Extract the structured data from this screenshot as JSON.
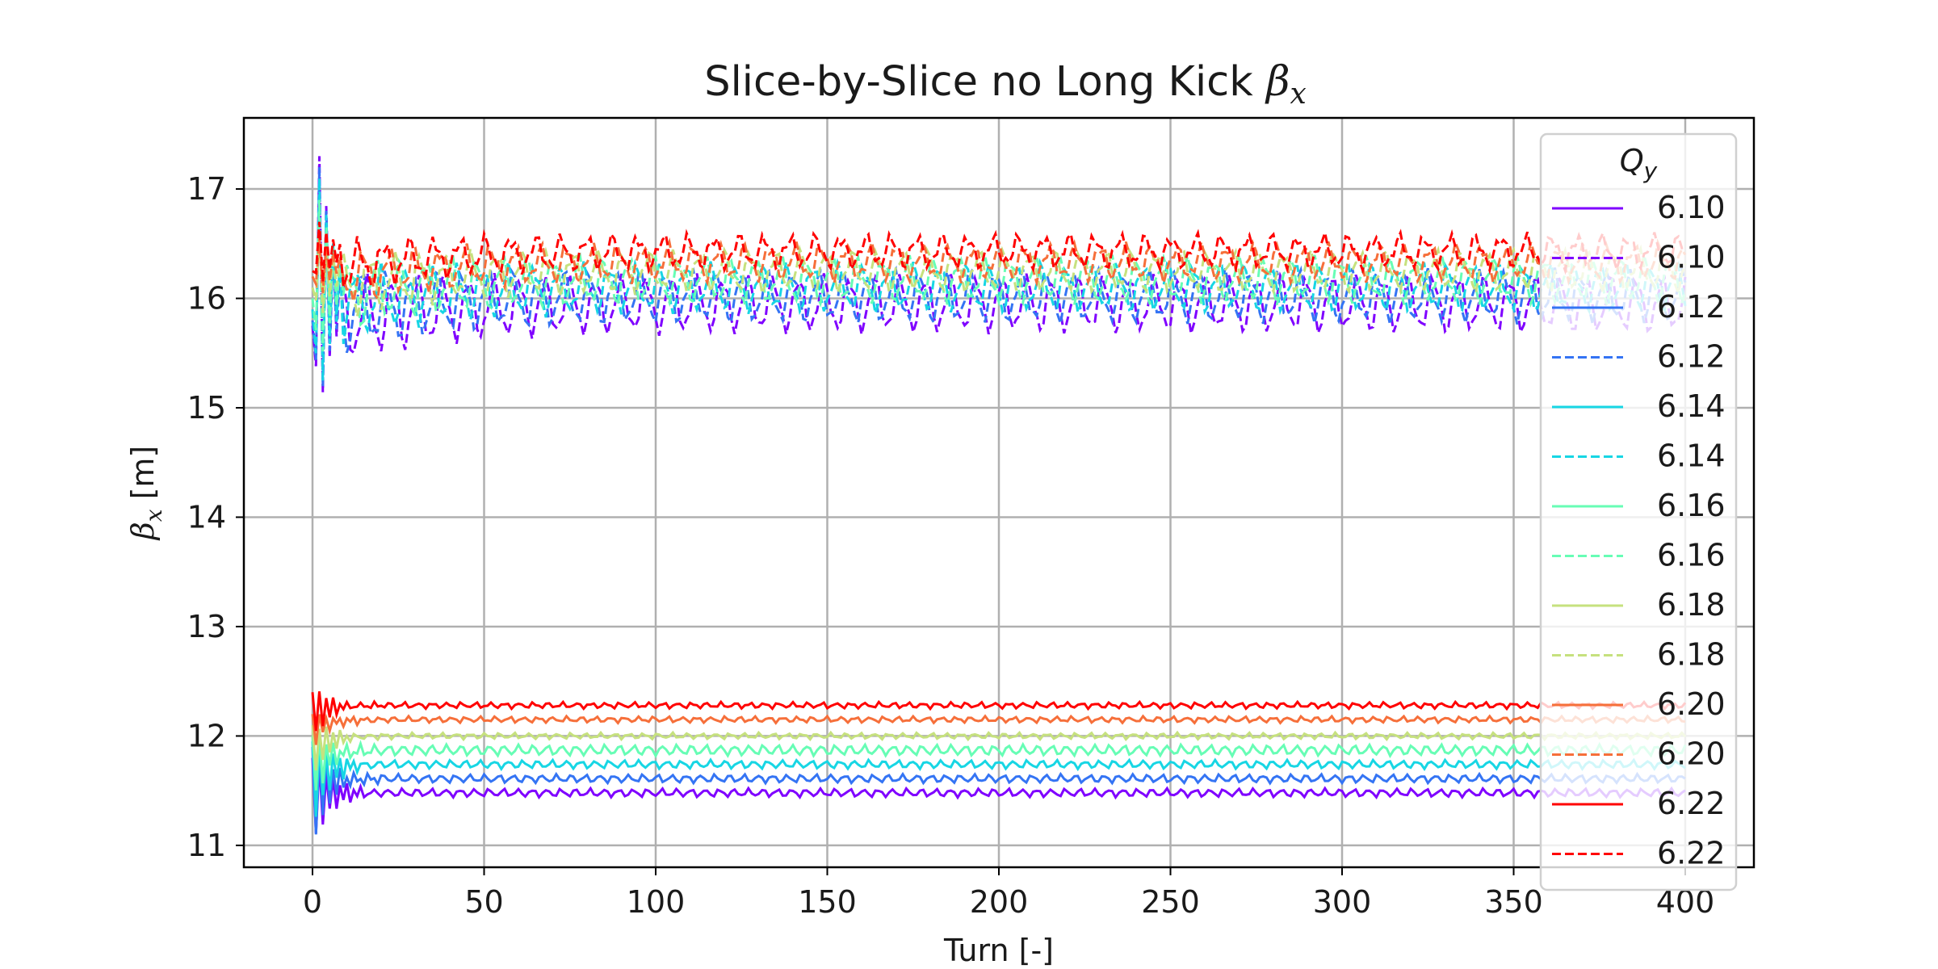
{
  "chart_data": {
    "type": "line",
    "title": "Slice-by-Slice no Long Kick ",
    "title_symbol": "β",
    "title_subscript": "x",
    "xlabel": "Turn [-]",
    "ylabel": " [m]",
    "ylabel_symbol": "β",
    "ylabel_subscript": "x",
    "xlim": [
      -20,
      420
    ],
    "ylim": [
      10.8,
      17.65
    ],
    "xticks": [
      0,
      50,
      100,
      150,
      200,
      250,
      300,
      350,
      400
    ],
    "yticks": [
      11,
      12,
      13,
      14,
      15,
      16,
      17
    ],
    "grid": true,
    "legend": {
      "title_symbol": "Q",
      "title_subscript": "y",
      "placement": "top-right (overlapping plot edge)"
    },
    "turns": 400,
    "series": [
      {
        "name": "6.10",
        "color": "#7f00ff",
        "dash": "solid",
        "start": 11.8,
        "mean": 11.48,
        "amp": 0.03,
        "osc_period": 4.2,
        "initial_min": 11.1
      },
      {
        "name": "6.10",
        "color": "#7f00ff",
        "dash": "dashed",
        "start": 15.75,
        "mean": 15.95,
        "amp": 0.22,
        "osc_period": 7.4,
        "initial_peak": 17.3,
        "initial_min": 15.0
      },
      {
        "name": "6.12",
        "color": "#3474f4",
        "dash": "solid",
        "start": 11.9,
        "mean": 11.61,
        "amp": 0.03,
        "osc_period": 4.2,
        "initial_min": 11.15
      },
      {
        "name": "6.12",
        "color": "#3474f4",
        "dash": "dashed",
        "start": 15.8,
        "mean": 16.02,
        "amp": 0.2,
        "osc_period": 7.4,
        "initial_peak": 17.2,
        "initial_min": 15.05
      },
      {
        "name": "6.14",
        "color": "#17d6e4",
        "dash": "solid",
        "start": 11.95,
        "mean": 11.74,
        "amp": 0.03,
        "osc_period": 4.2,
        "initial_min": 11.3
      },
      {
        "name": "6.14",
        "color": "#17d6e4",
        "dash": "dashed",
        "start": 15.9,
        "mean": 16.1,
        "amp": 0.18,
        "osc_period": 7.4,
        "initial_peak": 17.1,
        "initial_min": 15.1
      },
      {
        "name": "6.16",
        "color": "#67fdb5",
        "dash": "solid",
        "start": 12.0,
        "mean": 11.87,
        "amp": 0.04,
        "osc_period": 4.2,
        "initial_min": 11.5
      },
      {
        "name": "6.16",
        "color": "#67fdb5",
        "dash": "dashed",
        "start": 16.0,
        "mean": 16.17,
        "amp": 0.17,
        "osc_period": 7.4,
        "initial_peak": 16.9,
        "initial_min": 15.4
      },
      {
        "name": "6.18",
        "color": "#c6e17e",
        "dash": "solid",
        "start": 12.1,
        "mean": 12.0,
        "amp": 0.02,
        "osc_period": 4.2,
        "initial_min": 11.7
      },
      {
        "name": "6.18",
        "color": "#c6e17e",
        "dash": "dashed",
        "start": 16.1,
        "mean": 16.25,
        "amp": 0.15,
        "osc_period": 7.4,
        "initial_peak": 16.6,
        "initial_min": 15.8
      },
      {
        "name": "6.20",
        "color": "#f66f3a",
        "dash": "solid",
        "start": 12.2,
        "mean": 12.15,
        "amp": 0.02,
        "osc_period": 4.2,
        "initial_min": 11.95
      },
      {
        "name": "6.20",
        "color": "#f66f3a",
        "dash": "dashed",
        "start": 16.2,
        "mean": 16.33,
        "amp": 0.13,
        "osc_period": 7.4,
        "initial_peak": 16.55,
        "initial_min": 16.0
      },
      {
        "name": "6.22",
        "color": "#ff0000",
        "dash": "solid",
        "start": 12.4,
        "mean": 12.28,
        "amp": 0.02,
        "osc_period": 4.2,
        "initial_min": 12.05
      },
      {
        "name": "6.22",
        "color": "#ff0000",
        "dash": "dashed",
        "start": 16.25,
        "mean": 16.43,
        "amp": 0.12,
        "osc_period": 7.4,
        "initial_peak": 16.7,
        "initial_min": 16.1
      }
    ]
  }
}
